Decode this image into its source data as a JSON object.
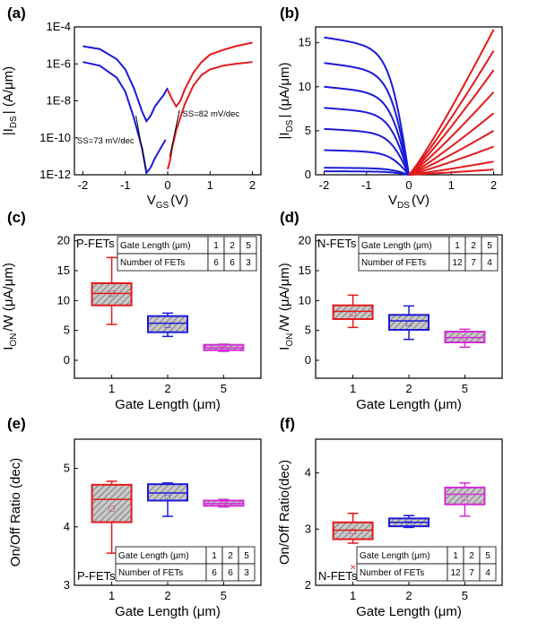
{
  "colors": {
    "red": "#e31a1c",
    "blue": "#1a1ad8",
    "magenta": "#d52bd5",
    "box_fill": "#bdbdbd"
  },
  "chart_data": [
    {
      "panel": "(a)",
      "type": "line",
      "xlabel_main": "V",
      "xlabel_sub": "GS",
      "xlabel_unit": "(V)",
      "ylabel": "|I_DS| (A/μm)",
      "ylabel_main": "|I",
      "ylabel_sub": "DS",
      "ylabel_unit": "| (A/μm)",
      "y_scale": "log",
      "xlim": [
        -2.2,
        2.2
      ],
      "ylim_exp": [
        -12,
        -4
      ],
      "x_ticks": [
        "-2",
        "-1",
        "0",
        "1",
        "2"
      ],
      "y_ticks": [
        "1E-12",
        "1E-10",
        "1E-8",
        "1E-6",
        "1E-4"
      ],
      "annotations": [
        "SS=73 mV/dec",
        "SS=82 mV/dec"
      ],
      "series": [
        {
          "color": "blue",
          "x": [
            -2,
            -1.6,
            -1.2,
            -1.0,
            -0.8,
            -0.6,
            -0.5,
            -0.4,
            -0.3,
            -0.1,
            0
          ],
          "y_exp": [
            -5.05,
            -5.2,
            -5.75,
            -6.3,
            -7.3,
            -8.6,
            -9.1,
            -8.8,
            -8.3,
            -7.7,
            -7.3
          ]
        },
        {
          "color": "blue",
          "x": [
            -2,
            -1.6,
            -1.2,
            -1.0,
            -0.8,
            -0.6,
            -0.5,
            -0.4,
            -0.3,
            -0.15,
            -0.05
          ],
          "y_exp": [
            -5.9,
            -6.1,
            -6.75,
            -7.5,
            -8.9,
            -10.6,
            -11.9,
            -11.6,
            -11.1,
            -10.5,
            -10.1
          ]
        },
        {
          "color": "red",
          "x": [
            0,
            0.1,
            0.2,
            0.3,
            0.4,
            0.6,
            0.8,
            1.0,
            1.3,
            1.6,
            2.0
          ],
          "y_exp": [
            -7.4,
            -7.9,
            -8.3,
            -8.0,
            -7.4,
            -6.5,
            -5.9,
            -5.5,
            -5.25,
            -5.05,
            -4.85
          ]
        },
        {
          "color": "red",
          "x": [
            0,
            0.05,
            0.1,
            0.2,
            0.4,
            0.6,
            0.8,
            1.0,
            1.3,
            1.6,
            2.0
          ],
          "y_exp": [
            -11.7,
            -11.3,
            -10.6,
            -9.6,
            -8.2,
            -7.2,
            -6.6,
            -6.3,
            -6.1,
            -6.0,
            -5.9
          ]
        }
      ],
      "ss_lines": [
        {
          "x": [
            -0.75,
            -0.52
          ],
          "y_exp": [
            -8.8,
            -11.7
          ]
        },
        {
          "x": [
            0.05,
            0.28
          ],
          "y_exp": [
            -11.0,
            -8.5
          ]
        }
      ]
    },
    {
      "panel": "(b)",
      "type": "line",
      "xlabel_main": "V",
      "xlabel_sub": "DS",
      "xlabel_unit": "(V)",
      "ylabel_main": "|I",
      "ylabel_sub": "DS",
      "ylabel_unit": "| (μA/μm)",
      "xlim": [
        -2.2,
        2.2
      ],
      "ylim": [
        0,
        16.8
      ],
      "x_ticks": [
        "-2",
        "-1",
        "0",
        "1",
        "2"
      ],
      "y_ticks": [
        "0",
        "5",
        "10",
        "15"
      ],
      "blue_sat": [
        15.6,
        12.7,
        10.0,
        7.6,
        5.2,
        2.8,
        0.8,
        0.4
      ],
      "red_sat": [
        16.5,
        14.1,
        11.9,
        9.4,
        7.0,
        5.0,
        3.2,
        1.5,
        0.6
      ]
    },
    {
      "panel": "(c)",
      "type": "box",
      "label": "P-FETs",
      "categories": [
        "1",
        "2",
        "5"
      ],
      "ylim": [
        -3,
        21
      ],
      "y_ticks": [
        "0",
        "5",
        "10",
        "15",
        "20"
      ],
      "xlabel": "Gate Length (μm)",
      "ylabel_main": "I",
      "ylabel_sub": "ON",
      "ylabel_unit": "/W (μA/μm)",
      "boxes": [
        {
          "color": "red",
          "min": 6.0,
          "q1": 9.2,
          "median": 11.2,
          "q3": 12.9,
          "max": 17.2,
          "mean": 11.3
        },
        {
          "color": "blue",
          "min": 4.0,
          "q1": 4.7,
          "median": 6.2,
          "q3": 7.4,
          "max": 7.9,
          "mean": 6.0
        },
        {
          "color": "magenta",
          "min": 1.5,
          "q1": 1.7,
          "median": 2.1,
          "q3": 2.6,
          "max": 2.7,
          "mean": 2.1
        }
      ],
      "table": {
        "row1": [
          "Gate Length (μm)",
          "1",
          "2",
          "5"
        ],
        "row2": [
          "Number of FETs",
          "6",
          "6",
          "3"
        ]
      }
    },
    {
      "panel": "(d)",
      "type": "box",
      "label": "N-FETs",
      "categories": [
        "1",
        "2",
        "5"
      ],
      "ylim": [
        -3,
        21
      ],
      "y_ticks": [
        "0",
        "5",
        "10",
        "15",
        "20"
      ],
      "xlabel": "Gate Length (μm)",
      "ylabel_main": "I",
      "ylabel_sub": "ON",
      "ylabel_unit": "/W (μA/μm)",
      "boxes": [
        {
          "color": "red",
          "min": 5.5,
          "q1": 6.9,
          "median": 8.2,
          "q3": 9.2,
          "max": 10.9,
          "mean": 8.0
        },
        {
          "color": "blue",
          "min": 3.5,
          "q1": 5.1,
          "median": 6.6,
          "q3": 7.6,
          "max": 9.1,
          "mean": 6.4
        },
        {
          "color": "magenta",
          "min": 2.2,
          "q1": 3.0,
          "median": 3.8,
          "q3": 4.8,
          "max": 5.2,
          "mean": 3.9
        }
      ],
      "table": {
        "row1": [
          "Gate Length (μm)",
          "1",
          "2",
          "5"
        ],
        "row2": [
          "Number of FETs",
          "12",
          "7",
          "4"
        ]
      }
    },
    {
      "panel": "(e)",
      "type": "box",
      "label": "P-FETs",
      "categories": [
        "1",
        "2",
        "5"
      ],
      "ylim": [
        3.0,
        5.5
      ],
      "y_ticks": [
        "3",
        "4",
        "5"
      ],
      "xlabel": "Gate Length (μm)",
      "ylabel": "On/Off Ratio (dec)",
      "boxes": [
        {
          "color": "red",
          "min": 3.55,
          "q1": 4.08,
          "median": 4.47,
          "q3": 4.72,
          "max": 4.78,
          "mean": 4.33
        },
        {
          "color": "blue",
          "min": 4.18,
          "q1": 4.45,
          "median": 4.58,
          "q3": 4.73,
          "max": 4.75,
          "mean": 4.52
        },
        {
          "color": "magenta",
          "min": 4.34,
          "q1": 4.36,
          "median": 4.4,
          "q3": 4.45,
          "max": 4.47,
          "mean": 4.4
        }
      ],
      "table": {
        "row1": [
          "Gate Length (μm)",
          "1",
          "2",
          "5"
        ],
        "row2": [
          "Number of FETs",
          "6",
          "6",
          "3"
        ]
      }
    },
    {
      "panel": "(f)",
      "type": "box",
      "label": "N-FETs",
      "categories": [
        "1",
        "2",
        "5"
      ],
      "ylim": [
        2.0,
        4.6
      ],
      "y_ticks": [
        "2",
        "3",
        "4"
      ],
      "xlabel": "Gate Length (μm)",
      "ylabel": "On/Off Ratio(dec)",
      "boxes": [
        {
          "color": "red",
          "min": 2.75,
          "q1": 2.82,
          "median": 2.98,
          "q3": 3.12,
          "max": 3.28,
          "mean": 2.97,
          "outlier": 2.33
        },
        {
          "color": "blue",
          "min": 3.03,
          "q1": 3.05,
          "median": 3.12,
          "q3": 3.19,
          "max": 3.24,
          "mean": 3.12,
          "outlier": 2.65
        },
        {
          "color": "magenta",
          "min": 3.23,
          "q1": 3.44,
          "median": 3.62,
          "q3": 3.74,
          "max": 3.82,
          "mean": 3.56
        }
      ],
      "table": {
        "row1": [
          "Gate Length (μm)",
          "1",
          "2",
          "5"
        ],
        "row2": [
          "Number of FETs",
          "12",
          "7",
          "4"
        ]
      }
    }
  ]
}
